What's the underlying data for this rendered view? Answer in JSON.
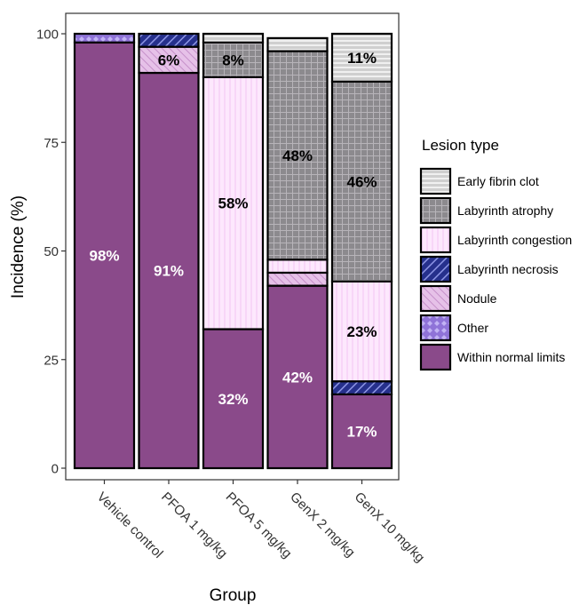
{
  "chart_data": {
    "type": "bar",
    "stacked": true,
    "xlabel": "Group",
    "ylabel": "Incidence (%)",
    "ylim": [
      0,
      100
    ],
    "yticks": [
      "0",
      "25",
      "50",
      "75",
      "100"
    ],
    "categories": [
      "Vehicle control",
      "PFOA 1 mg/kg",
      "PFOA 5 mg/kg",
      "GenX 2 mg/kg",
      "GenX 10 mg/kg"
    ],
    "legend": {
      "title": "Lesion type",
      "placement": "right"
    },
    "series": [
      {
        "name": "Within normal limits",
        "values": [
          98,
          91,
          32,
          42,
          17
        ],
        "color": "#8a4a8a",
        "pattern": "solid"
      },
      {
        "name": "Other",
        "values": [
          2,
          0,
          0,
          0,
          0
        ],
        "color": "#9b7fe0",
        "pattern": "diamond"
      },
      {
        "name": "Nodule",
        "values": [
          0,
          6,
          0,
          3,
          0
        ],
        "color": "#e0b4e4",
        "pattern": "hatch"
      },
      {
        "name": "Labyrinth necrosis",
        "values": [
          0,
          3,
          0,
          0,
          3
        ],
        "color": "#4a54b0",
        "pattern": "hatch-dark"
      },
      {
        "name": "Labyrinth congestion",
        "values": [
          0,
          0,
          58,
          3,
          23
        ],
        "color": "#fde8fd",
        "pattern": "vlines"
      },
      {
        "name": "Labyrinth atrophy",
        "values": [
          0,
          0,
          8,
          48,
          46
        ],
        "color": "#8c8a8e",
        "pattern": "grid"
      },
      {
        "name": "Early fibrin clot",
        "values": [
          0,
          0,
          2,
          3,
          11
        ],
        "color": "#cfcfcf",
        "pattern": "hlines"
      }
    ],
    "data_labels": [
      {
        "category": "Vehicle control",
        "series": "Within normal limits",
        "text": "98%",
        "color": "#ffffff"
      },
      {
        "category": "PFOA 1 mg/kg",
        "series": "Within normal limits",
        "text": "91%",
        "color": "#ffffff"
      },
      {
        "category": "PFOA 1 mg/kg",
        "series": "Nodule",
        "text": "6%",
        "color": "#000000"
      },
      {
        "category": "PFOA 5 mg/kg",
        "series": "Within normal limits",
        "text": "32%",
        "color": "#ffffff"
      },
      {
        "category": "PFOA 5 mg/kg",
        "series": "Labyrinth congestion",
        "text": "58%",
        "color": "#000000"
      },
      {
        "category": "PFOA 5 mg/kg",
        "series": "Labyrinth atrophy",
        "text": "8%",
        "color": "#000000"
      },
      {
        "category": "GenX 2 mg/kg",
        "series": "Within normal limits",
        "text": "42%",
        "color": "#ffffff"
      },
      {
        "category": "GenX 2 mg/kg",
        "series": "Labyrinth atrophy",
        "text": "48%",
        "color": "#000000"
      },
      {
        "category": "GenX 10 mg/kg",
        "series": "Within normal limits",
        "text": "17%",
        "color": "#ffffff"
      },
      {
        "category": "GenX 10 mg/kg",
        "series": "Labyrinth congestion",
        "text": "23%",
        "color": "#000000"
      },
      {
        "category": "GenX 10 mg/kg",
        "series": "Labyrinth atrophy",
        "text": "46%",
        "color": "#000000"
      },
      {
        "category": "GenX 10 mg/kg",
        "series": "Early fibrin clot",
        "text": "11%",
        "color": "#000000"
      }
    ],
    "grid": false
  }
}
